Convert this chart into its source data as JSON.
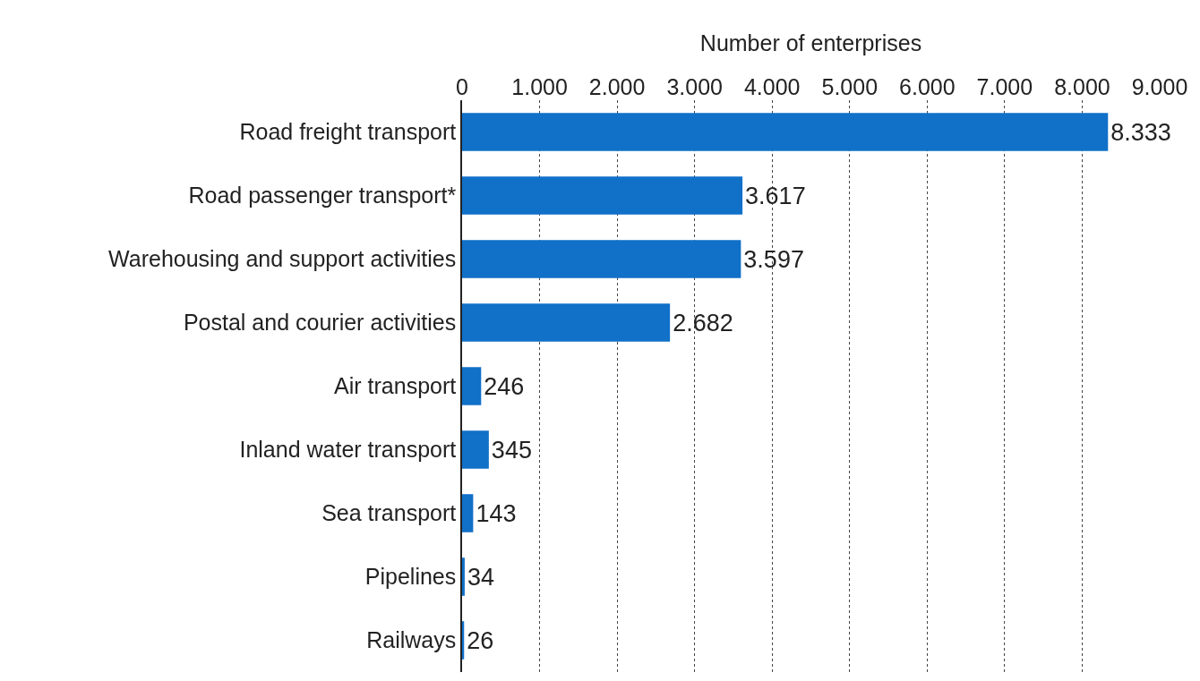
{
  "chart_data": {
    "type": "bar",
    "orientation": "horizontal",
    "xlabel": "Number of enterprises",
    "categories": [
      "Road freight transport",
      "Road passenger transport*",
      "Warehousing and support activities",
      "Postal and courier activities",
      "Air transport",
      "Inland water transport",
      "Sea transport",
      "Pipelines",
      "Railways"
    ],
    "values": [
      8333,
      3617,
      3597,
      2682,
      246,
      345,
      143,
      34,
      26
    ],
    "value_labels": [
      "8.333",
      "3.617",
      "3.597",
      "2.682",
      "246",
      "345",
      "143",
      "34",
      "26"
    ],
    "color": "#1170c8",
    "xlim": [
      0,
      9000
    ],
    "xticks": [
      0,
      {
        "value": 1000,
        "label": "1.000"
      },
      {
        "value": 2000,
        "label": "2.000"
      },
      {
        "value": 3000,
        "label": "3.000"
      },
      {
        "value": 4000,
        "label": "4.000"
      },
      {
        "value": 5000,
        "label": "5.000"
      },
      {
        "value": 6000,
        "label": "6.000"
      },
      {
        "value": 7000,
        "label": "7.000"
      },
      {
        "value": 8000,
        "label": "8.000"
      },
      {
        "value": 9000,
        "label": "9.000"
      }
    ],
    "grid": "x",
    "legend": false
  }
}
